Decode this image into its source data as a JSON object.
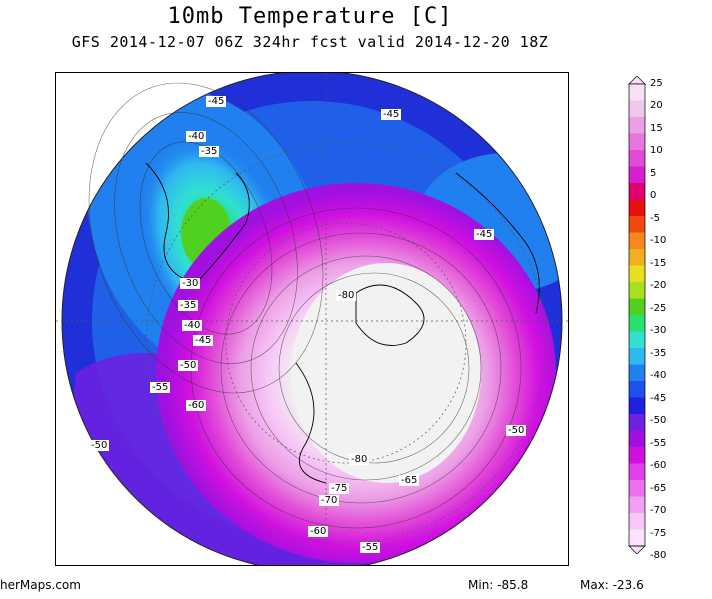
{
  "header": {
    "title": "10mb Temperature [C]",
    "subtitle": "GFS 2014-12-07 06Z 324hr fcst valid 2014-12-20 18Z"
  },
  "contour_labels": [
    "-45",
    "-45",
    "-40",
    "-35",
    "-30",
    "-35",
    "-40",
    "-45",
    "-50",
    "-55",
    "-60",
    "-50",
    "-80",
    "-45",
    "-50",
    "-80",
    "-65",
    "-75",
    "-70",
    "-60",
    "-55"
  ],
  "colorbar": {
    "ticks": [
      "25",
      "20",
      "15",
      "10",
      "5",
      "0",
      "-5",
      "-10",
      "-15",
      "-20",
      "-25",
      "-30",
      "-35",
      "-40",
      "-45",
      "-50",
      "-55",
      "-60",
      "-65",
      "-70",
      "-75",
      "-80"
    ],
    "colors": [
      "#f7e0f5",
      "#f2c7ee",
      "#ec9fe6",
      "#e675de",
      "#e24bd7",
      "#d61fd0",
      "#e10070",
      "#e71010",
      "#f04a10",
      "#f7891a",
      "#f0b020",
      "#e6e020",
      "#a8e020",
      "#50d020",
      "#28e070",
      "#30e0d0",
      "#30b8f0",
      "#2080f0",
      "#2050f0",
      "#2020e0",
      "#7020e0",
      "#a010e0",
      "#d010e0",
      "#e040e8",
      "#ea70ee",
      "#f2a0f2",
      "#f7c8f7",
      "#fbe4fb"
    ]
  },
  "footer": {
    "source": "herMaps.com",
    "min": "Min:  -85.8",
    "max": "Max:  -23.6"
  }
}
